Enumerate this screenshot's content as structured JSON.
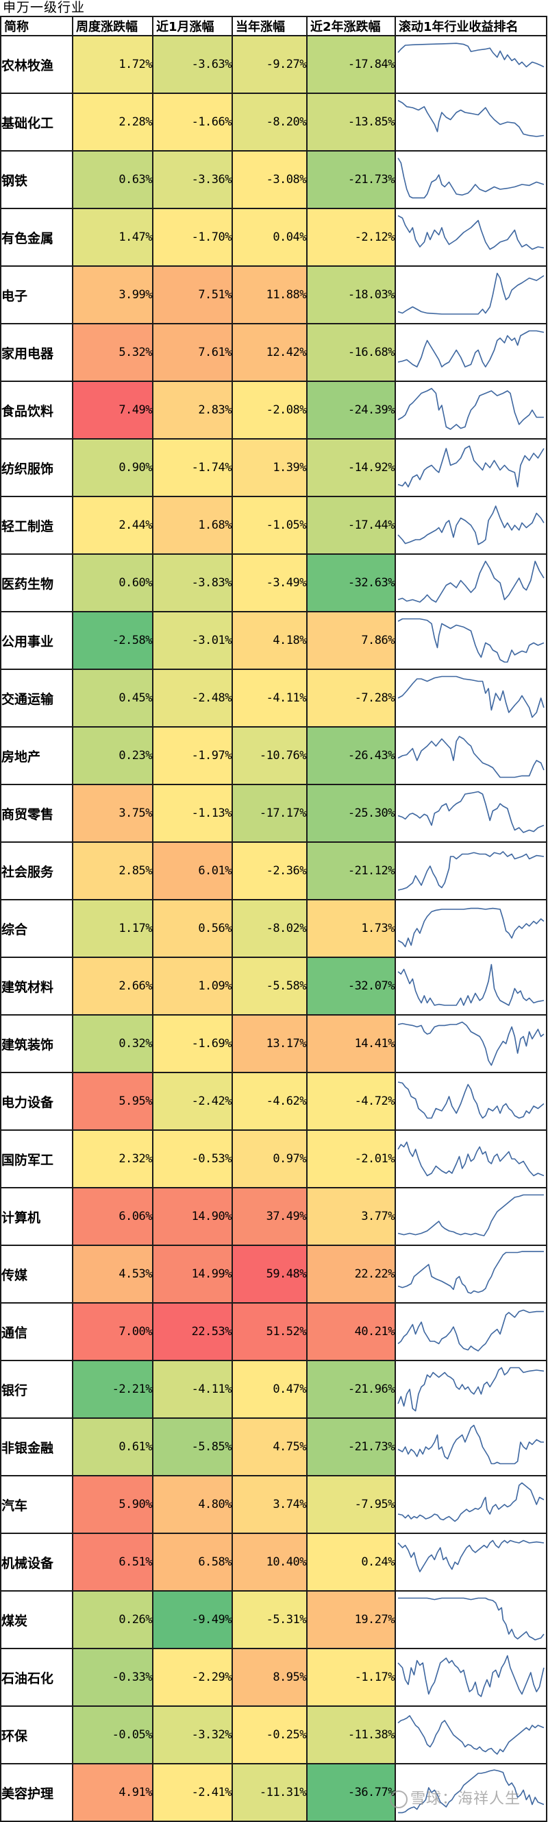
{
  "title": "申万一级行业",
  "header": [
    "简称",
    "周度涨跌幅",
    "近1月涨幅",
    "当年涨幅",
    "近2年涨跌幅",
    "滚动1年行业收益排名"
  ],
  "watermark": "雪球：海祥人生",
  "line_color": "#3E67A0",
  "color_scale": {
    "low": "#63BE7B",
    "mid": "#FFEB84",
    "high": "#F8696B"
  },
  "rows": [
    {
      "name": "农林牧渔",
      "vals": [
        "1.72%",
        "-3.63%",
        "-9.27%",
        "-17.84%"
      ],
      "colors": [
        "#F1E785",
        "#D7DF82",
        "#E1E283",
        "#BFD97F"
      ],
      "spark": "0,25 2,18 5,10 10,9 20,8 30,7 40,6 45,8 48,12 50,23 55,20 60,18 63,16 65,25 68,35 70,22 73,40 75,30 78,42 80,38 83,50 85,45 88,55 90,50 92,45 95,48 98,52 100,55"
    },
    {
      "name": "基础化工",
      "vals": [
        "2.28%",
        "-1.66%",
        "-8.20%",
        "-13.85%"
      ],
      "colors": [
        "#FDE984",
        "#FFE884",
        "#E3E383",
        "#CFDD81"
      ],
      "spark": "0,5 3,10 6,18 10,20 14,25 18,18 20,30 23,45 25,55 27,70 28,50 30,30 33,40 36,45 40,30 43,25 46,30 50,32 55,35 60,20 63,35 66,45 70,55 75,50 80,52 83,60 86,75 90,78 95,80 100,78"
    },
    {
      "name": "钢铁",
      "vals": [
        "0.63%",
        "-3.36%",
        "-3.08%",
        "-21.73%"
      ],
      "colors": [
        "#C6DA80",
        "#DDE183",
        "#FFE884",
        "#A5D17F"
      ],
      "spark": "0,5 2,15 4,45 6,70 8,85 10,88 14,88 18,88 20,80 23,55 26,50 28,40 30,60 32,65 35,55 38,70 40,80 44,82 48,78 50,72 53,60 56,70 60,75 63,70 66,65 70,70 75,68 80,65 85,60 90,62 95,55 100,60"
    },
    {
      "name": "有色金属",
      "vals": [
        "1.47%",
        "-1.70%",
        "0.04%",
        "-2.12%"
      ],
      "colors": [
        "#E2E383",
        "#FFE884",
        "#FFE884",
        "#FFE884"
      ],
      "spark": "0,5 3,10 5,25 8,40 10,30 12,55 15,70 18,60 20,40 22,55 25,35 28,45 30,30 32,50 35,65 40,55 45,40 50,30 55,15 57,35 60,60 63,75 66,70 70,60 75,55 80,35 82,55 85,70 88,65 92,75 96,70 100,72"
    },
    {
      "name": "电子",
      "vals": [
        "3.99%",
        "7.51%",
        "11.88%",
        "-18.03%"
      ],
      "colors": [
        "#FDC07C",
        "#FCB479",
        "#FDC07C",
        "#C4DA80"
      ],
      "spark": "0,85 3,88 6,82 10,75 13,80 16,85 20,88 30,90 40,90 50,90 55,90 58,80 60,88 63,75 65,50 67,20 68,5 70,15 72,40 74,60 76,55 78,40 80,35 82,30 85,25 90,15 95,20 100,10"
    },
    {
      "name": "家用电器",
      "vals": [
        "5.32%",
        "7.61%",
        "12.42%",
        "-16.68%"
      ],
      "colors": [
        "#FBA276",
        "#FCB479",
        "#FDC07C",
        "#C6DA80"
      ],
      "spark": "0,70 3,68 6,65 10,75 13,80 16,60 18,40 20,25 22,35 25,50 28,65 30,80 32,75 35,70 38,55 40,45 43,60 46,80 50,75 53,50 55,45 58,70 60,80 63,65 66,45 68,25 70,20 73,30 75,15 78,25 80,20 82,35 84,15 87,10 90,5 95,5 100,8"
    },
    {
      "name": "食品饮料",
      "vals": [
        "7.49%",
        "2.83%",
        "-2.08%",
        "-24.39%"
      ],
      "colors": [
        "#F8696B",
        "#FED280",
        "#FFE884",
        "#9DCF7E"
      ],
      "spark": "0,70 3,65 5,60 8,40 10,35 13,25 16,15 20,10 23,5 26,15 28,50 30,40 33,85 36,90 40,80 43,88 46,85 48,65 50,50 53,40 56,20 60,15 64,10 68,20 72,15 75,10 77,15 80,55 83,80 86,70 90,60 92,50 95,65 100,65"
    },
    {
      "name": "纺织服饰",
      "vals": [
        "0.90%",
        "-1.74%",
        "1.39%",
        "-14.92%"
      ],
      "colors": [
        "#CFDD81",
        "#FFE884",
        "#FEDE82",
        "#CBDC81"
      ],
      "spark": "0,85 3,88 5,80 7,90 10,70 13,65 15,75 18,55 20,50 23,45 26,55 28,60 30,40 33,10 36,45 40,40 43,30 46,10 49,5 52,35 55,45 58,55 60,40 63,50 66,35 70,55 73,45 76,55 80,60 82,90 84,45 87,25 90,35 93,20 96,30 100,10"
    },
    {
      "name": "轻工制造",
      "vals": [
        "2.44%",
        "1.68%",
        "-1.05%",
        "-17.44%"
      ],
      "colors": [
        "#FFE884",
        "#FED280",
        "#FFE884",
        "#C2D97F"
      ],
      "spark": "0,70 3,80 5,88 8,85 12,80 15,80 18,75 20,70 23,65 26,60 28,55 30,65 33,45 35,40 38,75 40,50 43,35 46,40 50,50 53,65 55,90 58,85 60,80 62,40 65,25 67,10 70,35 73,55 75,45 78,60 80,50 83,60 85,45 88,55 92,45 95,25 98,35 100,45"
    },
    {
      "name": "医药生物",
      "vals": [
        "0.60%",
        "-3.83%",
        "-3.49%",
        "-32.63%"
      ],
      "colors": [
        "#C7DA80",
        "#D6DF82",
        "#FFE884",
        "#6FC27B"
      ],
      "spark": "0,85 3,82 6,88 10,85 15,90 18,82 20,75 23,85 26,90 30,70 33,55 36,50 40,60 43,45 46,55 50,70 53,60 56,30 60,5 63,20 66,40 70,50 73,85 76,75 80,55 83,40 86,60 88,65 91,45 94,5 97,25 100,40"
    },
    {
      "name": "公用事业",
      "vals": [
        "-2.58%",
        "-3.01%",
        "4.18%",
        "7.86%"
      ],
      "colors": [
        "#67C07B",
        "#DFE283",
        "#FED980",
        "#FED080"
      ],
      "spark": "0,10 3,5 6,5 10,5 15,5 20,8 23,15 25,45 27,65 28,40 30,15 33,20 36,25 40,18 45,22 50,30 53,60 55,75 57,85 60,55 63,60 65,70 68,75 70,90 73,95 75,95 78,70 80,80 83,75 85,72 88,75 90,60 93,55 96,60 100,55"
    },
    {
      "name": "交通运输",
      "vals": [
        "0.45%",
        "-2.48%",
        "-4.11%",
        "-7.28%"
      ],
      "colors": [
        "#C5DA80",
        "#E8E483",
        "#FFE884",
        "#FEE483"
      ],
      "spark": "0,50 3,45 6,35 10,20 13,10 16,10 20,15 25,8 30,5 35,5 40,5 45,10 50,12 55,15 58,15 60,40 62,30 64,75 67,40 70,55 72,35 74,60 76,80 80,65 83,55 85,45 88,60 90,70 92,90 95,80 98,50 100,70"
    },
    {
      "name": "房地产",
      "vals": [
        "0.23%",
        "-1.97%",
        "-10.76%",
        "-26.43%"
      ],
      "colors": [
        "#C1D97F",
        "#FFE884",
        "#DEE283",
        "#96CD7E"
      ],
      "spark": "0,55 3,50 6,48 10,35 13,60 16,40 20,30 23,20 26,30 30,15 33,25 36,35 38,60 40,20 42,10 45,15 48,25 50,30 52,45 55,55 58,65 62,70 65,75 70,95 75,95 80,95 85,92 90,92 93,70 95,60 98,65 100,80"
    },
    {
      "name": "商贸零售",
      "vals": [
        "3.75%",
        "-1.13%",
        "-17.17%",
        "-25.30%"
      ],
      "colors": [
        "#FDC07C",
        "#FFE884",
        "#C2D97F",
        "#99CE7E"
      ],
      "spark": "0,55 3,58 5,62 8,52 10,50 13,55 15,60 18,52 20,55 23,75 25,50 28,45 30,35 33,30 35,45 38,35 40,30 43,25 46,10 50,8 55,5 58,10 60,30 63,65 65,45 68,40 70,30 72,35 75,40 78,70 80,85 83,80 86,90 90,85 93,88 96,80 100,75"
    },
    {
      "name": "社会服务",
      "vals": [
        "2.85%",
        "6.01%",
        "-2.36%",
        "-21.12%"
      ],
      "colors": [
        "#FED880",
        "#FDBB7A",
        "#FFE884",
        "#A9D27F"
      ],
      "spark": "0,90 3,88 6,85 10,75 12,60 14,70 16,80 18,65 20,50 22,40 24,55 26,65 28,80 30,85 32,75 35,45 36,20 38,20 40,25 44,15 48,15 52,12 56,15 60,15 63,20 66,12 70,15 72,10 75,20 78,15 80,25 85,20 88,15 90,25 95,18 100,20"
    },
    {
      "name": "综合",
      "vals": [
        "1.17%",
        "0.56%",
        "-8.02%",
        "1.73%"
      ],
      "colors": [
        "#D9E082",
        "#FED880",
        "#E3E383",
        "#FED880"
      ],
      "spark": "0,75 3,80 5,88 7,70 9,85 11,60 13,50 15,60 18,35 20,25 23,15 26,12 30,10 35,10 40,10 45,10 50,8 55,8 60,10 65,8 70,10 72,30 74,55 76,60 78,70 80,55 83,45 85,50 88,40 90,45 93,35 95,40 98,30 100,35"
    },
    {
      "name": "建筑材料",
      "vals": [
        "2.66%",
        "1.09%",
        "-5.58%",
        "-32.07%"
      ],
      "colors": [
        "#FED880",
        "#FED880",
        "#EFE684",
        "#74C47C"
      ],
      "spark": "0,20 2,25 4,15 6,30 8,45 10,35 12,60 14,75 16,85 18,70 20,85 22,75 25,90 28,88 32,90 36,90 40,90 43,75 45,90 48,70 50,85 53,65 56,80 58,75 60,60 62,40 64,5 66,55 68,70 70,80 73,85 76,90 78,75 80,55 82,65 84,60 86,75 88,80 90,75 93,85 96,82 100,80"
    },
    {
      "name": "建筑装饰",
      "vals": [
        "0.32%",
        "-1.69%",
        "13.17%",
        "14.41%"
      ],
      "colors": [
        "#C3DA80",
        "#FFE884",
        "#FDC07C",
        "#FDC07C"
      ],
      "spark": "0,10 3,8 6,10 10,12 13,15 16,12 18,25 20,30 22,28 25,15 28,12 32,12 36,10 40,10 44,5 47,12 50,25 53,30 56,35 58,45 60,60 62,85 64,95 66,80 68,65 70,55 72,45 74,50 76,30 78,15 80,35 82,70 84,40 86,35 88,55 90,25 92,40 94,30 96,20 98,35 100,30"
    },
    {
      "name": "电力设备",
      "vals": [
        "5.95%",
        "-2.42%",
        "-4.62%",
        "-4.72%"
      ],
      "colors": [
        "#F98970",
        "#EBE583",
        "#FDE984",
        "#FDE984"
      ],
      "spark": "0,10 3,12 5,20 7,25 9,40 12,45 14,65 16,70 18,75 20,85 23,85 26,65 30,70 33,55 35,40 37,60 40,75 43,55 46,30 48,15 50,25 52,45 54,55 56,75 58,85 60,80 62,65 65,70 68,60 70,75 72,60 74,55 76,65 78,70 80,80 83,85 86,82 88,70 90,75 93,60 96,65 100,55"
    },
    {
      "name": "国防军工",
      "vals": [
        "2.32%",
        "-0.53%",
        "0.97%",
        "-2.01%"
      ],
      "colors": [
        "#FFE884",
        "#FFE884",
        "#FEDE82",
        "#FFE884"
      ],
      "spark": "0,30 2,20 4,25 6,15 8,35 10,45 12,30 14,50 16,65 18,75 20,85 23,80 26,65 28,70 30,75 33,80 35,75 37,80 40,60 42,45 44,70 46,60 48,40 50,55 52,50 54,35 56,25 58,40 60,35 62,55 64,60 66,45 68,40 70,55 73,45 76,35 78,50 80,50 83,60 86,55 88,65 90,75 93,85 96,80 100,85"
    },
    {
      "name": "计算机",
      "vals": [
        "6.06%",
        "14.90%",
        "37.49%",
        "3.77%"
      ],
      "colors": [
        "#F98970",
        "#F98970",
        "#F98F71",
        "#FED880"
      ],
      "spark": "0,85 4,88 8,85 12,88 16,85 20,80 24,70 26,65 28,60 30,70 32,75 35,80 38,82 40,85 43,88 46,85 50,88 53,85 56,88 59,90 62,75 64,60 66,50 68,40 70,35 72,30 74,25 76,20 78,15 80,10 83,8 86,5 90,5 95,5 100,5"
    },
    {
      "name": "传媒",
      "vals": [
        "4.53%",
        "14.99%",
        "59.48%",
        "22.22%"
      ],
      "colors": [
        "#FCB479",
        "#F98970",
        "#F8696B",
        "#FCB479"
      ],
      "spark": "0,75 3,78 6,75 9,70 11,55 13,50 15,45 17,40 19,35 21,30 23,55 26,60 30,65 33,70 36,75 38,82 40,60 42,55 44,70 46,75 48,88 50,90 52,85 55,88 58,85 60,80 62,65 64,55 66,40 68,30 70,20 72,10 74,5 78,5 82,5 85,3 90,3 95,3 100,3"
    },
    {
      "name": "通信",
      "vals": [
        "7.00%",
        "22.53%",
        "51.52%",
        "40.21%"
      ],
      "colors": [
        "#F97B6E",
        "#F8696B",
        "#F97B6E",
        "#F98970"
      ],
      "spark": "0,75 2,70 4,60 6,55 8,45 10,35 12,55 14,40 16,30 18,50 20,60 22,70 25,70 28,75 30,65 33,60 36,50 38,40 40,55 42,75 45,85 48,88 50,80 52,85 55,90 58,80 60,75 62,65 64,55 66,50 68,45 70,55 72,35 74,15 76,10 78,15 80,20 83,8 86,5 90,10 95,8 100,8"
    },
    {
      "name": "银行",
      "vals": [
        "-2.21%",
        "-4.11%",
        "0.47%",
        "-21.96%"
      ],
      "colors": [
        "#6FC27B",
        "#D3DE81",
        "#FFE884",
        "#A5D17F"
      ],
      "spark": "0,80 2,65 4,85 6,60 8,50 10,90 12,95 14,60 16,45 18,40 20,20 22,25 24,15 26,20 28,25 30,20 32,15 34,22 36,25 38,30 40,45 42,50 44,40 46,50 48,45 50,55 52,60 55,45 57,60 59,40 61,35 63,45 65,35 67,25 69,10 71,5 73,20 75,15 77,5 80,5 83,5 86,15 90,12 95,10 100,12"
    },
    {
      "name": "非银金融",
      "vals": [
        "0.61%",
        "-5.85%",
        "4.75%",
        "-21.73%"
      ],
      "colors": [
        "#C7DA80",
        "#A9D27F",
        "#FED980",
        "#A5D17F"
      ],
      "spark": "0,55 3,60 5,50 7,65 9,55 11,60 13,70 15,55 17,65 19,50 21,55 23,50 25,40 27,25 28,55 30,50 32,70 34,75 36,60 38,45 40,35 42,30 44,25 46,40 48,25 50,10 52,5 54,20 56,30 58,50 60,60 62,70 64,85 66,85 68,82 70,85 72,85 75,85 78,85 80,85 82,80 84,40 86,50 88,55 90,40 92,45 95,35 98,40 100,40"
    },
    {
      "name": "汽车",
      "vals": [
        "5.90%",
        "4.80%",
        "3.74%",
        "-7.95%"
      ],
      "colors": [
        "#F98970",
        "#FDC07C",
        "#FED880",
        "#E8E483"
      ],
      "spark": "0,70 3,72 5,78 7,72 9,80 11,75 13,78 15,72 17,75 19,80 21,78 23,75 25,70 27,72 29,80 31,82 33,78 35,75 37,80 39,85 41,80 43,70 45,65 47,60 49,65 51,62 53,58 55,60 57,55 59,40 60,35 61,60 63,70 65,55 67,50 69,60 71,55 73,50 75,55 77,52 79,45 81,40 83,10 85,5 87,10 89,15 91,20 93,35 95,50 97,35 100,40"
    },
    {
      "name": "机械设备",
      "vals": [
        "6.51%",
        "6.58%",
        "10.40%",
        "0.24%"
      ],
      "colors": [
        "#F98570",
        "#FDBB7A",
        "#FDC07C",
        "#FFE884"
      ],
      "spark": "0,10 3,20 5,15 7,25 9,40 11,30 13,55 15,70 17,60 19,50 21,40 23,35 25,45 27,30 29,20 31,45 33,40 35,55 37,65 39,50 41,55 43,40 45,30 47,20 49,15 51,25 53,30 55,25 57,20 59,15 61,20 63,10 65,5 67,15 69,20 71,10 73,5 75,10 77,5 80,8 83,10 86,5 90,10 95,8 100,10"
    },
    {
      "name": "煤炭",
      "vals": [
        "0.26%",
        "-9.49%",
        "-5.31%",
        "19.27%"
      ],
      "colors": [
        "#C1D97F",
        "#63BE7B",
        "#F4E884",
        "#FDC07C"
      ],
      "spark": "0,5 5,5 10,5 15,5 20,5 25,8 30,5 35,5 40,5 45,5 50,8 55,5 60,5 62,8 65,10 67,15 69,30 71,25 72,50 74,60 76,80 78,70 80,85 82,90 84,85 86,80 88,75 90,85 92,88 94,92 96,90 98,88 100,80"
    },
    {
      "name": "石油石化",
      "vals": [
        "-0.33%",
        "-2.29%",
        "8.95%",
        "-1.17%"
      ],
      "colors": [
        "#B0D47F",
        "#FFE884",
        "#FDC07C",
        "#FFE884"
      ],
      "spark": "0,20 3,30 5,55 7,65 9,30 11,45 13,15 15,25 17,20 19,55 21,85 23,70 25,60 27,40 29,20 31,15 33,10 35,20 37,15 39,25 41,30 43,40 45,35 47,60 49,80 51,75 53,60 55,85 57,90 59,70 61,55 63,70 65,40 67,35 69,50 71,30 73,20 75,5 77,30 79,45 81,60 83,75 85,85 87,70 89,55 91,40 93,65 95,80 97,70 100,30"
    },
    {
      "name": "环保",
      "vals": [
        "-0.05%",
        "-3.32%",
        "-0.25%",
        "-11.38%"
      ],
      "colors": [
        "#B3D57F",
        "#DBE182",
        "#FFE884",
        "#D9E082"
      ],
      "spark": "0,25 2,20 4,18 6,15 8,10 10,20 12,30 14,35 16,45 18,55 20,70 22,75 24,65 26,50 28,40 30,25 32,20 34,30 36,40 38,50 40,55 42,60 44,65 46,75 48,70 50,72 52,78 54,80 56,75 58,82 60,85 62,80 64,78 66,85 68,90 70,80 72,85 74,75 76,65 78,60 80,55 82,50 84,45 86,40 88,35 90,40 92,30 94,35 96,30 100,35"
    },
    {
      "name": "美容护理",
      "vals": [
        "4.91%",
        "-2.41%",
        "-11.31%",
        "-36.77%"
      ],
      "colors": [
        "#FBA276",
        "#FFE884",
        "#DDE183",
        "#63BE7B"
      ],
      "spark": "0,92 3,92 5,90 7,85 9,82 11,80 13,85 15,75 17,72 19,65 21,40 23,50 25,45 27,55 29,70 31,75 33,80 35,70 37,65 39,55 41,50 43,45 45,35 47,30 49,25 51,20 53,15 55,10 57,10 60,8 63,5 66,3 69,5 72,8 74,25 76,35 78,30 80,40 82,60 84,55 86,45 88,65 90,55 92,75 94,60 96,70 100,75"
    }
  ],
  "chart_data": {
    "type": "table",
    "title": "申万一级行业",
    "columns": [
      "简称",
      "周度涨跌幅",
      "近1月涨幅",
      "当年涨幅",
      "近2年涨跌幅",
      "滚动1年行业收益排名"
    ],
    "categories": [
      "农林牧渔",
      "基础化工",
      "钢铁",
      "有色金属",
      "电子",
      "家用电器",
      "食品饮料",
      "纺织服饰",
      "轻工制造",
      "医药生物",
      "公用事业",
      "交通运输",
      "房地产",
      "商贸零售",
      "社会服务",
      "综合",
      "建筑材料",
      "建筑装饰",
      "电力设备",
      "国防军工",
      "计算机",
      "传媒",
      "通信",
      "银行",
      "非银金融",
      "汽车",
      "机械设备",
      "煤炭",
      "石油石化",
      "环保",
      "美容护理"
    ],
    "series": [
      {
        "name": "周度涨跌幅",
        "unit": "%",
        "values": [
          1.72,
          2.28,
          0.63,
          1.47,
          3.99,
          5.32,
          7.49,
          0.9,
          2.44,
          0.6,
          -2.58,
          0.45,
          0.23,
          3.75,
          2.85,
          1.17,
          2.66,
          0.32,
          5.95,
          2.32,
          6.06,
          4.53,
          7.0,
          -2.21,
          0.61,
          5.9,
          6.51,
          0.26,
          -0.33,
          -0.05,
          4.91
        ]
      },
      {
        "name": "近1月涨幅",
        "unit": "%",
        "values": [
          -3.63,
          -1.66,
          -3.36,
          -1.7,
          7.51,
          7.61,
          2.83,
          -1.74,
          1.68,
          -3.83,
          -3.01,
          -2.48,
          -1.97,
          -1.13,
          6.01,
          0.56,
          1.09,
          -1.69,
          -2.42,
          -0.53,
          14.9,
          14.99,
          22.53,
          -4.11,
          -5.85,
          4.8,
          6.58,
          -9.49,
          -2.29,
          -3.32,
          -2.41
        ]
      },
      {
        "name": "当年涨幅",
        "unit": "%",
        "values": [
          -9.27,
          -8.2,
          -3.08,
          0.04,
          11.88,
          12.42,
          -2.08,
          1.39,
          -1.05,
          -3.49,
          4.18,
          -4.11,
          -10.76,
          -17.17,
          -2.36,
          -8.02,
          -5.58,
          13.17,
          -4.62,
          0.97,
          37.49,
          59.48,
          51.52,
          0.47,
          4.75,
          3.74,
          10.4,
          -5.31,
          8.95,
          -0.25,
          -11.31
        ]
      },
      {
        "name": "近2年涨跌幅",
        "unit": "%",
        "values": [
          -17.84,
          -13.85,
          -21.73,
          -2.12,
          -18.03,
          -16.68,
          -24.39,
          -14.92,
          -17.44,
          -32.63,
          7.86,
          -7.28,
          -26.43,
          -25.3,
          -21.12,
          1.73,
          -32.07,
          14.41,
          -4.72,
          -2.01,
          3.77,
          22.22,
          40.21,
          -21.96,
          -21.73,
          -7.95,
          0.24,
          19.27,
          -1.17,
          -11.38,
          -36.77
        ]
      }
    ],
    "conditional_formatting": "3-color scale green-yellow-red (low→high)",
    "sparkline_column": "滚动1年行业收益排名 (line sparkline per industry)"
  }
}
